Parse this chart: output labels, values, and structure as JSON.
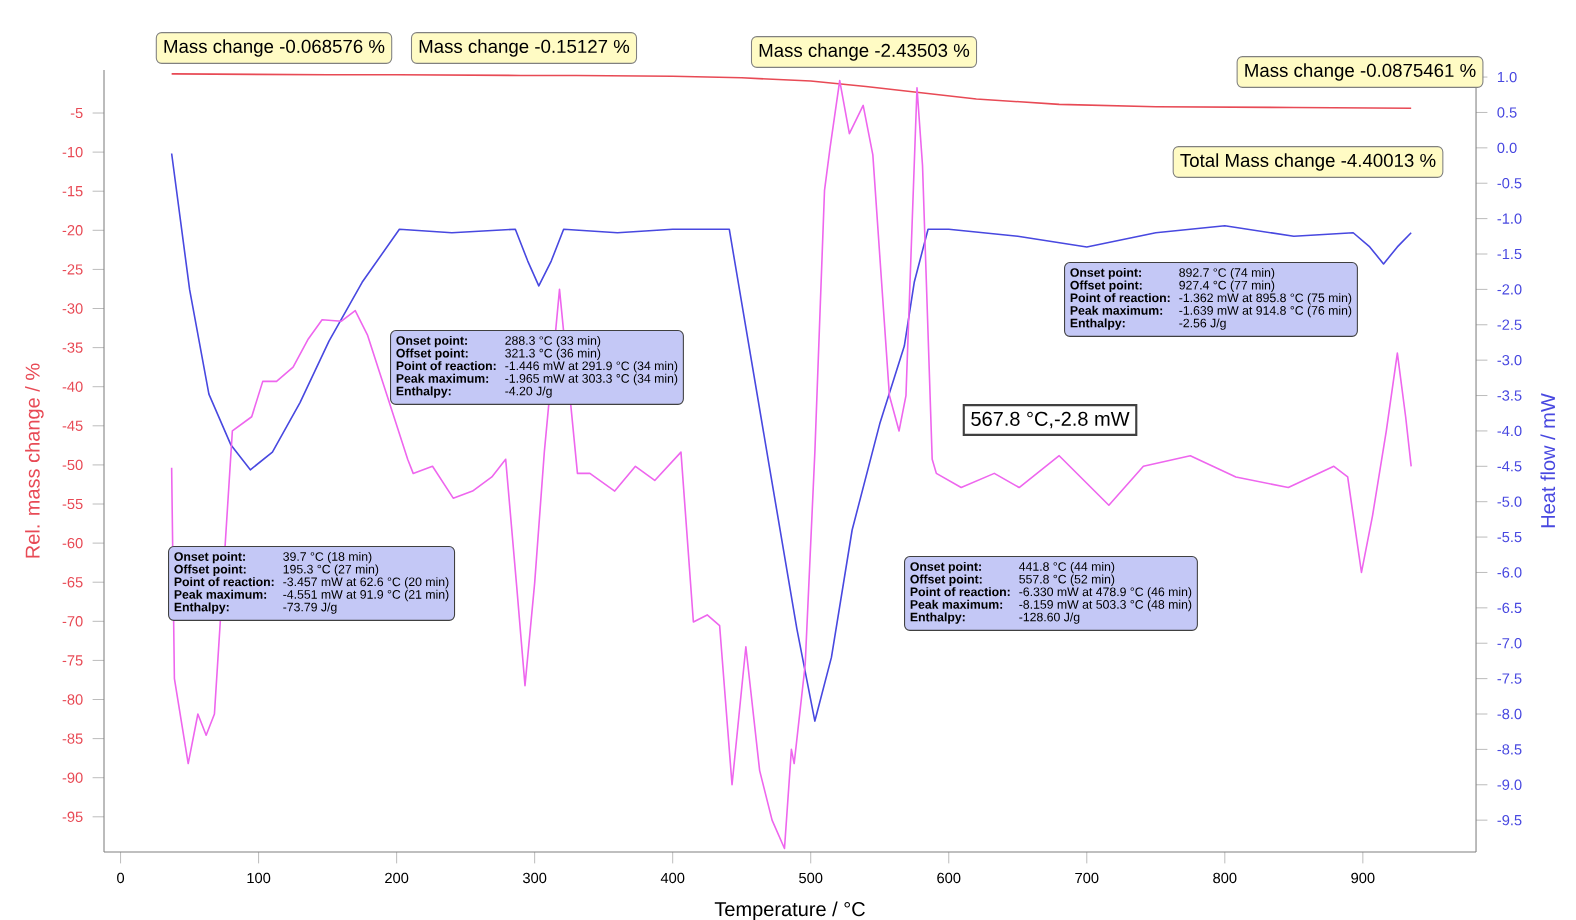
{
  "chart_data": {
    "type": "line",
    "xlabel": "Temperature / °C",
    "ylabel": "Rel. mass change / %",
    "y2label": "Heat flow / mW",
    "xlim": [
      -12,
      982
    ],
    "xticks": [
      0,
      100,
      200,
      300,
      400,
      500,
      600,
      700,
      800,
      900
    ],
    "ylim": [
      -99.5,
      0.5
    ],
    "yticks": [
      -5,
      -10,
      -15,
      -20,
      -25,
      -30,
      -35,
      -40,
      -45,
      -50,
      -55,
      -60,
      -65,
      -70,
      -75,
      -80,
      -85,
      -90,
      -95
    ],
    "y2lim": [
      -9.95,
      1.1
    ],
    "y2ticks": [
      {
        "value": 1.0,
        "label": "1.0"
      },
      {
        "value": 0.5,
        "label": "0.5"
      },
      {
        "value": 0.0,
        "label": "0.0"
      },
      {
        "value": -0.5,
        "label": "-0.5"
      },
      {
        "value": -1.0,
        "label": "-1.0"
      },
      {
        "value": -1.5,
        "label": "-1.5"
      },
      {
        "value": -2.0,
        "label": "-2.0"
      },
      {
        "value": -2.5,
        "label": "-2.5"
      },
      {
        "value": -3.0,
        "label": "-3.0"
      },
      {
        "value": -3.5,
        "label": "-3.5"
      },
      {
        "value": -4.0,
        "label": "-4.0"
      },
      {
        "value": -4.5,
        "label": "-4.5"
      },
      {
        "value": -5.0,
        "label": "-5.0"
      },
      {
        "value": -5.5,
        "label": "-5.5"
      },
      {
        "value": -6.0,
        "label": "-6.0"
      },
      {
        "value": -6.5,
        "label": "-6.5"
      },
      {
        "value": -7.0,
        "label": "-7.0"
      },
      {
        "value": -7.5,
        "label": "-7.5"
      },
      {
        "value": -8.0,
        "label": "-8.0"
      },
      {
        "value": -8.5,
        "label": "-8.5"
      },
      {
        "value": -9.0,
        "label": "-9.0"
      },
      {
        "value": -9.5,
        "label": "-9.5"
      }
    ],
    "series": [
      {
        "color": "#e84a55",
        "x": [
          37,
          150,
          200,
          290,
          330,
          400,
          450,
          500,
          540,
          580,
          620,
          680,
          750,
          850,
          935
        ],
        "values": [
          0,
          -0.1,
          -0.1,
          -0.2,
          -0.2,
          -0.3,
          -0.5,
          -0.9,
          -1.6,
          -2.4,
          -3.2,
          -3.9,
          -4.2,
          -4.3,
          -4.4
        ]
      },
      {
        "color": "#4848e0",
        "axis": "y2",
        "x": [
          37,
          50,
          64,
          80,
          94,
          110,
          130,
          151,
          175,
          202,
          240,
          286,
          295,
          303,
          312,
          321,
          360,
          400,
          441,
          470,
          490,
          503,
          515,
          530,
          550,
          567.8,
          575,
          585,
          600,
          650,
          700,
          750,
          800,
          850,
          893,
          905,
          915,
          925,
          935
        ],
        "values": [
          -0.08,
          -2.0,
          -3.48,
          -4.2,
          -4.55,
          -4.3,
          -3.6,
          -2.73,
          -1.9,
          -1.15,
          -1.2,
          -1.15,
          -1.6,
          -1.95,
          -1.6,
          -1.15,
          -1.2,
          -1.15,
          -1.15,
          -4.5,
          -6.8,
          -8.1,
          -7.2,
          -5.4,
          -3.9,
          -2.8,
          -1.9,
          -1.15,
          -1.15,
          -1.25,
          -1.4,
          -1.2,
          -1.1,
          -1.25,
          -1.2,
          -1.4,
          -1.64,
          -1.4,
          -1.2
        ]
      },
      {
        "color": "#ee66ee",
        "axis": "y2",
        "x": [
          37,
          39,
          49,
          56,
          62,
          68,
          73,
          81,
          95,
          103,
          113,
          125,
          136,
          146,
          160,
          170,
          179,
          198,
          208,
          212,
          226,
          241,
          255,
          269,
          279,
          287,
          293,
          300,
          307,
          318,
          325,
          331,
          340,
          358,
          373,
          387,
          406,
          415,
          425,
          434,
          443,
          453,
          463,
          472,
          481,
          486,
          488,
          496,
          503,
          510,
          514,
          521,
          528,
          538,
          545,
          557,
          564,
          569,
          577,
          581,
          588,
          591,
          609,
          633,
          651,
          680,
          716,
          741,
          775,
          808,
          846,
          879,
          889,
          899,
          907,
          917,
          925,
          931,
          935
        ],
        "values": [
          -4.52,
          -7.5,
          -8.7,
          -8.0,
          -8.3,
          -8.0,
          null,
          -4.0,
          -3.8,
          -3.3,
          -3.3,
          -3.1,
          -2.7,
          -2.43,
          -2.45,
          -2.3,
          -2.65,
          null,
          -4.4,
          -4.6,
          -4.5,
          -4.95,
          -4.85,
          -4.65,
          -4.4,
          -6.2,
          -7.6,
          -6.15,
          -4.3,
          -2.0,
          null,
          -4.6,
          -4.6,
          -4.85,
          -4.5,
          -4.7,
          -4.3,
          -6.7,
          -6.6,
          -6.75,
          -9.0,
          -7.05,
          -8.8,
          -9.5,
          -9.9,
          -8.5,
          -8.7,
          -7.3,
          -4.3,
          -0.6,
          0.0,
          0.95,
          0.2,
          0.6,
          -0.1,
          -3.5,
          -4.0,
          -3.5,
          0.85,
          -0.25,
          -4.4,
          -4.6,
          -4.8,
          -4.6,
          -4.8,
          -4.35,
          -5.05,
          -4.5,
          -4.35,
          -4.65,
          -4.8,
          -4.5,
          -4.65,
          -6.0,
          -5.2,
          -4.0,
          -2.9,
          -3.8,
          -4.5
        ]
      }
    ],
    "annotations": [
      "Mass change  -0.068576 %",
      "Mass change  -0.15127 %",
      "Mass change  -2.43503 %",
      "Mass change  -0.0875461 %",
      "Total Mass change  -4.40013 %",
      "567.8 °C,-2.8 mW",
      "Onset point:",
      "892.7 °C (74 min)",
      "Offset point:",
      "927.4 °C (77 min)",
      "Point of reaction:",
      "-1.362 mW at 895.8 °C (75 min)",
      "Peak maximum:",
      "-1.639 mW at 914.8 °C (76 min)",
      "Enthalpy:",
      "-2.56 J/g",
      "Onset point:",
      "288.3 °C (33 min)",
      "Offset point:",
      "321.3 °C (36 min)",
      "Point of reaction:",
      "-1.446 mW at 291.9 °C (34 min)",
      "Peak maximum:",
      "-1.965 mW at 303.3 °C (34 min)",
      "Enthalpy:",
      "-4.20 J/g",
      "Onset point:",
      "39.7 °C (18 min)",
      "Offset point:",
      "195.3 °C (27 min)",
      "Point of reaction:",
      "-3.457 mW at 62.6 °C (20 min)",
      "Peak maximum:",
      "-4.551 mW at 91.9 °C (21 min)",
      "Enthalpy:",
      "-73.79 J/g",
      "Onset point:",
      "441.8 °C (44 min)",
      "Offset point:",
      "557.8 °C (52 min)",
      "Point of reaction:",
      "-6.330 mW at 478.9 °C (46 min)",
      "Peak maximum:",
      "-8.159 mW at 503.3 °C (48 min)",
      "Enthalpy:",
      "-128.60 J/g"
    ]
  }
}
